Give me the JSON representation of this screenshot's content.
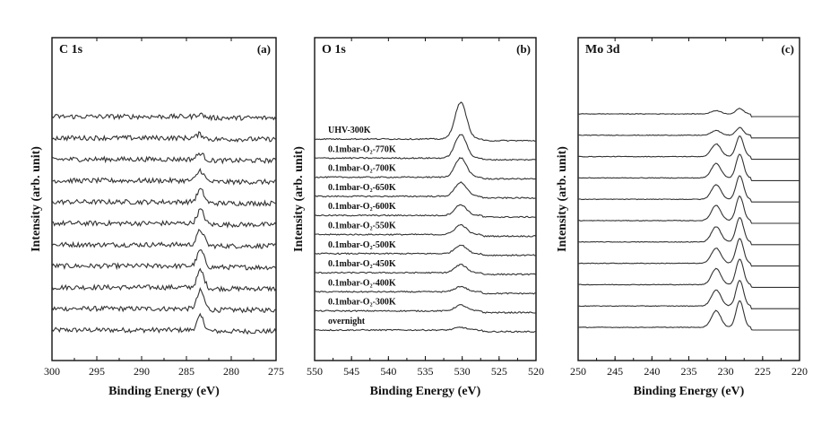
{
  "chart_data": [
    {
      "type": "line",
      "panel_title": "C 1s",
      "panel_letter": "(a)",
      "xlabel": "Binding Energy (eV)",
      "ylabel": "Intensity (arb. unit)",
      "xlim": [
        300,
        275
      ],
      "x_ticks": [
        300,
        295,
        290,
        285,
        280,
        275
      ],
      "y_ticks_shown": false,
      "peaks_eV": [
        283.4
      ],
      "series": [
        {
          "offset": 0,
          "peak_height": 1.3
        },
        {
          "offset": 1,
          "peak_height": 1.7
        },
        {
          "offset": 2,
          "peak_height": 1.6
        },
        {
          "offset": 3,
          "peak_height": 1.5
        },
        {
          "offset": 4,
          "peak_height": 1.4
        },
        {
          "offset": 5,
          "peak_height": 1.3
        },
        {
          "offset": 6,
          "peak_height": 1.2
        },
        {
          "offset": 7,
          "peak_height": 1.0
        },
        {
          "offset": 8,
          "peak_height": 0.6
        },
        {
          "offset": 9,
          "peak_height": 0.4
        },
        {
          "offset": 10,
          "peak_height": 0.3
        }
      ]
    },
    {
      "type": "line",
      "panel_title": "O 1s",
      "panel_letter": "(b)",
      "xlabel": "Binding Energy (eV)",
      "ylabel": "Intensity (arb. unit)",
      "xlim": [
        550,
        520
      ],
      "x_ticks": [
        550,
        545,
        540,
        535,
        530,
        525,
        520
      ],
      "y_ticks_shown": false,
      "peaks_eV": [
        530.2
      ],
      "series": [
        {
          "name": "overnight",
          "offset": 0,
          "peak_height": 0.25
        },
        {
          "name": "0.1mbar-O₂-300K",
          "offset": 1,
          "peak_height": 0.55
        },
        {
          "name": "0.1mbar-O₂-400K",
          "offset": 2,
          "peak_height": 0.5
        },
        {
          "name": "0.1mbar-O₂-450K",
          "offset": 3,
          "peak_height": 0.75
        },
        {
          "name": "0.1mbar-O₂-500K",
          "offset": 4,
          "peak_height": 0.8
        },
        {
          "name": "0.1mbar-O₂-550K",
          "offset": 5,
          "peak_height": 0.9
        },
        {
          "name": "0.1mbar-O₂-600K",
          "offset": 6,
          "peak_height": 1.0
        },
        {
          "name": "0.1mbar-O₂-650K",
          "offset": 7,
          "peak_height": 1.3
        },
        {
          "name": "0.1mbar-O₂-700K",
          "offset": 8,
          "peak_height": 1.8
        },
        {
          "name": "0.1mbar-O₂-770K",
          "offset": 9,
          "peak_height": 2.2
        },
        {
          "name": "UHV-300K",
          "offset": 10,
          "peak_height": 3.4
        }
      ]
    },
    {
      "type": "line",
      "panel_title": "Mo 3d",
      "panel_letter": "(c)",
      "xlabel": "Binding Energy (eV)",
      "ylabel": "Intensity (arb. unit)",
      "xlim": [
        250,
        220
      ],
      "x_ticks": [
        250,
        245,
        240,
        235,
        230,
        225,
        220
      ],
      "y_ticks_shown": false,
      "peaks_eV": [
        231.3,
        228.1
      ],
      "series": [
        {
          "offset": 0,
          "peak_height": 2.5
        },
        {
          "offset": 1,
          "peak_height": 2.4
        },
        {
          "offset": 2,
          "peak_height": 2.4
        },
        {
          "offset": 3,
          "peak_height": 2.3
        },
        {
          "offset": 4,
          "peak_height": 2.3
        },
        {
          "offset": 5,
          "peak_height": 2.3
        },
        {
          "offset": 6,
          "peak_height": 2.2
        },
        {
          "offset": 7,
          "peak_height": 2.2
        },
        {
          "offset": 8,
          "peak_height": 1.9
        },
        {
          "offset": 9,
          "peak_height": 0.7
        },
        {
          "offset": 10,
          "peak_height": 0.5
        }
      ]
    }
  ]
}
